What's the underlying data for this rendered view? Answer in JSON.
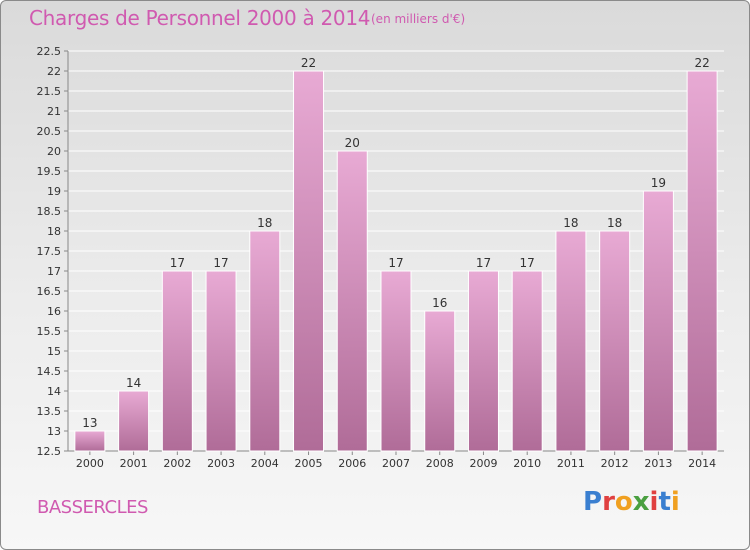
{
  "header": {
    "title": "Charges de Personnel 2000 à 2014",
    "subtitle": "(en milliers d'€)"
  },
  "footer": {
    "commune": "BASSERCLES",
    "logo_text": "Proxiti"
  },
  "colors": {
    "title": "#d05ab0",
    "bar_top": "#e8aad4",
    "bar_bottom": "#b06c98",
    "logo_letters": [
      "#3a7fd0",
      "#e04040",
      "#f0a020",
      "#4aa040",
      "#e04040",
      "#3a7fd0",
      "#f0a020"
    ]
  },
  "chart_data": {
    "type": "bar",
    "categories": [
      "2000",
      "2001",
      "2002",
      "2003",
      "2004",
      "2005",
      "2006",
      "2007",
      "2008",
      "2009",
      "2010",
      "2011",
      "2012",
      "2013",
      "2014"
    ],
    "values": [
      13,
      14,
      17,
      17,
      18,
      22,
      20,
      17,
      16,
      17,
      17,
      18,
      18,
      19,
      22
    ],
    "title": "Charges de Personnel 2000 à 2014",
    "subtitle": "(en milliers d'€)",
    "ylim": [
      12.5,
      22.5
    ],
    "yticks": [
      12.5,
      13,
      13.5,
      14,
      14.5,
      15,
      15.5,
      16,
      16.5,
      17,
      17.5,
      18,
      18.5,
      19,
      19.5,
      20,
      20.5,
      21,
      21.5,
      22,
      22.5
    ],
    "ytick_labels": [
      "12.5",
      "13",
      "13.5",
      "14",
      "14.5",
      "15",
      "15.5",
      "16",
      "16.5",
      "17",
      "17.5",
      "18",
      "18.5",
      "19",
      "19.5",
      "20",
      "20.5",
      "21",
      "21.5",
      "22",
      "22.5"
    ],
    "grid": true,
    "data_labels": [
      "13",
      "14",
      "17",
      "17",
      "18",
      "22",
      "20",
      "17",
      "16",
      "17",
      "17",
      "18",
      "18",
      "19",
      "22"
    ]
  }
}
